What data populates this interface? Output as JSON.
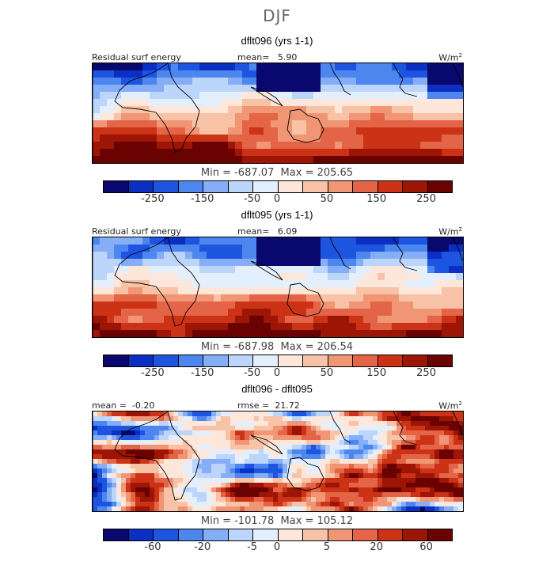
{
  "season": "DJF",
  "palette": [
    "#08086e",
    "#0b2fc2",
    "#1e55e0",
    "#4d86ee",
    "#85aef7",
    "#bcd5fb",
    "#e4effd",
    "#fde7db",
    "#f8c2a7",
    "#f09675",
    "#e46447",
    "#cc3216",
    "#9c1505",
    "#6a0202"
  ],
  "panels": [
    {
      "title": "dflt096 (yrs 1-1)",
      "left_label": "Residual surf energy",
      "stat_label": "mean=   5.90",
      "units": "W/m",
      "units_sup": "2",
      "minmax": "Min = -687.07  Max = 205.65",
      "ticks": [
        "-250",
        "-150",
        "-50",
        "0",
        "50",
        "150",
        "250"
      ],
      "field": "upper"
    },
    {
      "title": "dflt095 (yrs 1-1)",
      "left_label": "Residual surf energy",
      "stat_label": "mean=   6.09",
      "units": "W/m",
      "units_sup": "2",
      "minmax": "Min = -687.98  Max = 206.54",
      "ticks": [
        "-250",
        "-150",
        "-50",
        "0",
        "50",
        "150",
        "250"
      ],
      "field": "upper"
    },
    {
      "title": "dflt096 - dflt095",
      "left_label": "mean =  -0.20",
      "stat_label": "rmse =  21.72",
      "units": "W/m",
      "units_sup": "2",
      "minmax": "Min = -101.78  Max = 105.12",
      "ticks": [
        "-60",
        "-20",
        "-5",
        "0",
        "5",
        "20",
        "60"
      ],
      "field": "diff"
    }
  ]
}
